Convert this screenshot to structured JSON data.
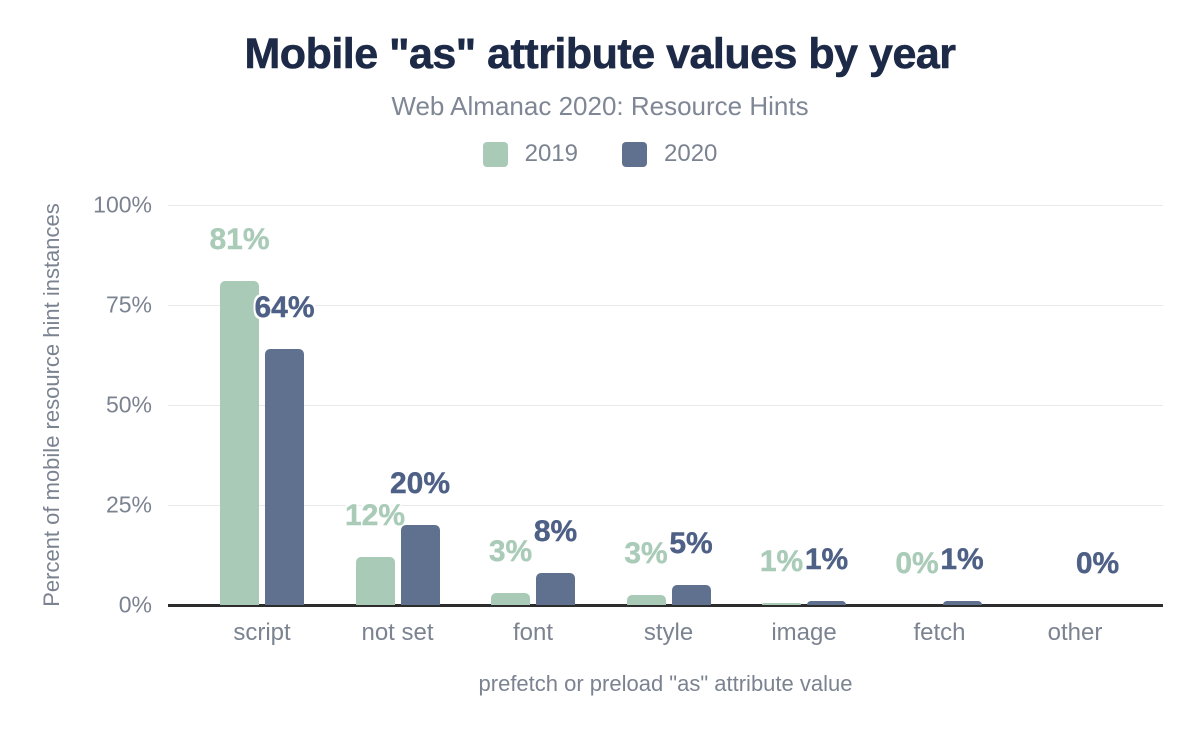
{
  "colors": {
    "title": "#1d2a47",
    "subtitle": "#7f8795",
    "axis_text": "#7b8391",
    "gridline": "#e9e9e9",
    "axis_line": "#2d2d2d",
    "series_2019": "#a8cab7",
    "series_2019_label": "#a9cbb8",
    "series_2020": "#5f718e",
    "series_2020_label": "#4e6086",
    "background": "#ffffff"
  },
  "chart_data": {
    "type": "bar",
    "title": "Mobile \"as\" attribute values by year",
    "subtitle": "Web Almanac 2020: Resource Hints",
    "xlabel": "prefetch or preload \"as\" attribute value",
    "ylabel": "Percent of mobile resource hint instances",
    "categories": [
      "script",
      "not set",
      "font",
      "style",
      "image",
      "fetch",
      "other"
    ],
    "series": [
      {
        "name": "2019",
        "color": "#a8cab7",
        "label_color": "#a9cbb8",
        "values": [
          81,
          12,
          3,
          2.5,
          0.5,
          0,
          null
        ],
        "labels": [
          "81%",
          "12%",
          "3%",
          "3%",
          "1%",
          "0%",
          null
        ]
      },
      {
        "name": "2020",
        "color": "#5f718e",
        "label_color": "#4e6086",
        "values": [
          64,
          20,
          8,
          5,
          1,
          1,
          0
        ],
        "labels": [
          "64%",
          "20%",
          "8%",
          "5%",
          "1%",
          "1%",
          "0%"
        ]
      }
    ],
    "y_ticks": [
      {
        "label": "100%",
        "value": 100
      },
      {
        "label": "75%",
        "value": 75
      },
      {
        "label": "50%",
        "value": 50
      },
      {
        "label": "25%",
        "value": 25
      },
      {
        "label": "0%",
        "value": 0
      }
    ],
    "ylim": [
      0,
      100
    ],
    "grid": true,
    "legend_position": "top"
  }
}
